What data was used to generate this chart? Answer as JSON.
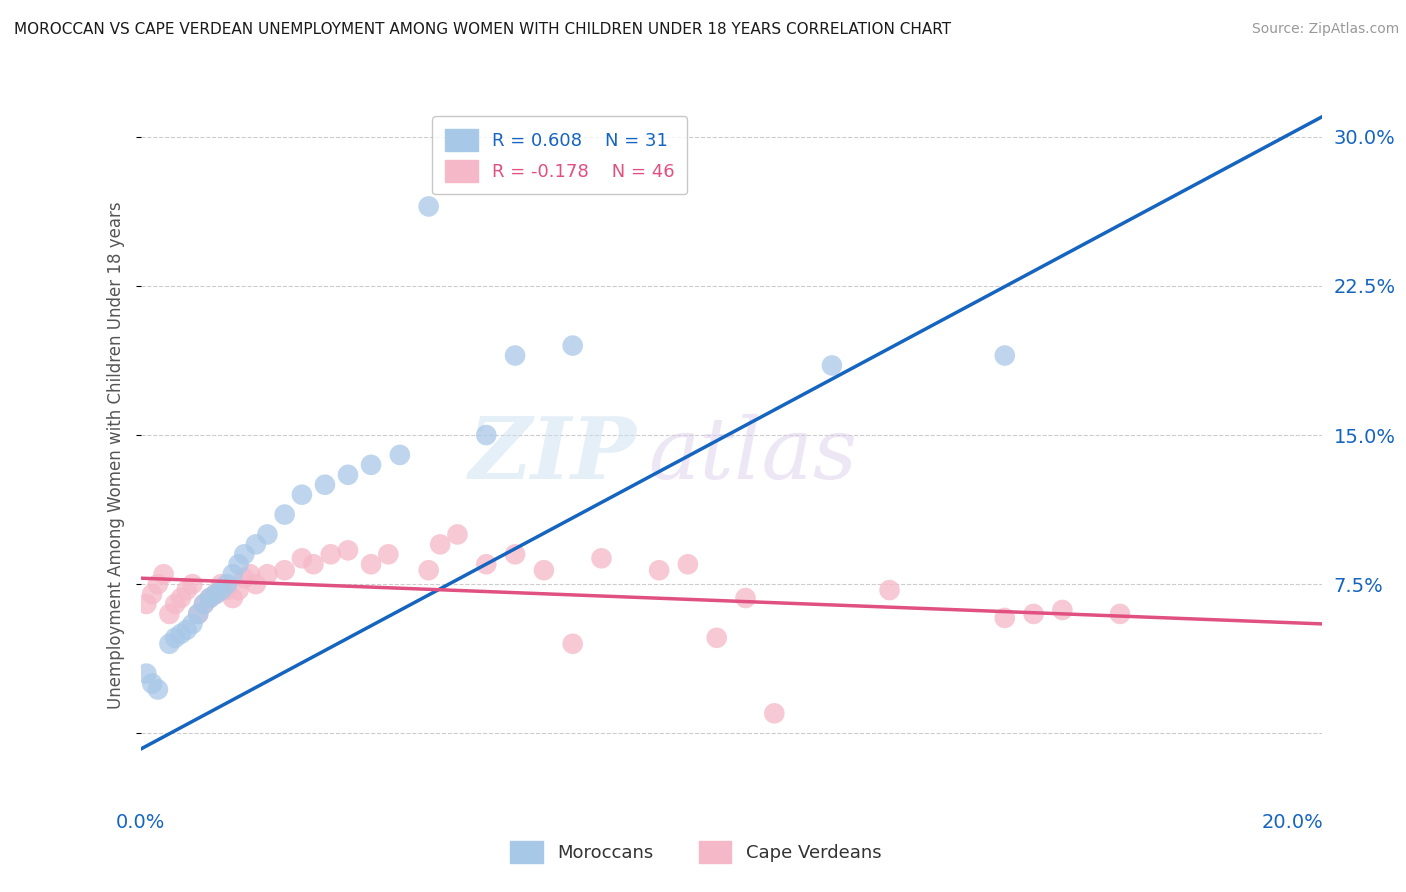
{
  "title": "MOROCCAN VS CAPE VERDEAN UNEMPLOYMENT AMONG WOMEN WITH CHILDREN UNDER 18 YEARS CORRELATION CHART",
  "source": "Source: ZipAtlas.com",
  "ylabel": "Unemployment Among Women with Children Under 18 years",
  "watermark_zip": "ZIP",
  "watermark_atlas": "atlas",
  "moroccan_color": "#a8c8e8",
  "capeverdean_color": "#f5b8c8",
  "moroccan_line_color": "#1565c0",
  "capeverdean_line_color": "#e05080",
  "moroccan_R": 0.608,
  "moroccan_N": 31,
  "capeverdean_R": -0.178,
  "capeverdean_N": 46,
  "xlim": [
    0.0,
    0.205
  ],
  "ylim": [
    -0.035,
    0.315
  ],
  "yticks": [
    0.0,
    0.075,
    0.15,
    0.225,
    0.3
  ],
  "ytick_labels": [
    "",
    "7.5%",
    "15.0%",
    "22.5%",
    "30.0%"
  ],
  "xticks": [
    0.0,
    0.05,
    0.1,
    0.15,
    0.2
  ],
  "xtick_labels": [
    "0.0%",
    "",
    "",
    "",
    "20.0%"
  ],
  "moroccan_x": [
    0.001,
    0.002,
    0.003,
    0.005,
    0.006,
    0.007,
    0.008,
    0.009,
    0.01,
    0.011,
    0.012,
    0.013,
    0.014,
    0.015,
    0.016,
    0.017,
    0.018,
    0.02,
    0.022,
    0.025,
    0.028,
    0.032,
    0.036,
    0.04,
    0.045,
    0.05,
    0.06,
    0.065,
    0.075,
    0.12,
    0.15
  ],
  "moroccan_y": [
    0.03,
    0.025,
    0.022,
    0.045,
    0.048,
    0.05,
    0.052,
    0.055,
    0.06,
    0.065,
    0.068,
    0.07,
    0.072,
    0.075,
    0.08,
    0.085,
    0.09,
    0.095,
    0.1,
    0.11,
    0.12,
    0.125,
    0.13,
    0.135,
    0.14,
    0.265,
    0.15,
    0.19,
    0.195,
    0.185,
    0.19
  ],
  "capeverdean_x": [
    0.001,
    0.002,
    0.003,
    0.004,
    0.005,
    0.006,
    0.007,
    0.008,
    0.009,
    0.01,
    0.011,
    0.012,
    0.013,
    0.014,
    0.015,
    0.016,
    0.017,
    0.018,
    0.019,
    0.02,
    0.022,
    0.025,
    0.028,
    0.03,
    0.033,
    0.036,
    0.04,
    0.043,
    0.05,
    0.052,
    0.055,
    0.06,
    0.065,
    0.07,
    0.075,
    0.08,
    0.09,
    0.095,
    0.1,
    0.105,
    0.11,
    0.13,
    0.15,
    0.155,
    0.16,
    0.17
  ],
  "capeverdean_y": [
    0.065,
    0.07,
    0.075,
    0.08,
    0.06,
    0.065,
    0.068,
    0.072,
    0.075,
    0.06,
    0.065,
    0.068,
    0.07,
    0.075,
    0.072,
    0.068,
    0.072,
    0.078,
    0.08,
    0.075,
    0.08,
    0.082,
    0.088,
    0.085,
    0.09,
    0.092,
    0.085,
    0.09,
    0.082,
    0.095,
    0.1,
    0.085,
    0.09,
    0.082,
    0.045,
    0.088,
    0.082,
    0.085,
    0.048,
    0.068,
    0.01,
    0.072,
    0.058,
    0.06,
    0.062,
    0.06
  ],
  "background_color": "#ffffff",
  "grid_color": "#cccccc",
  "moroccan_line_x": [
    0.0,
    0.205
  ],
  "moroccan_line_y": [
    -0.008,
    0.31
  ],
  "capeverdean_line_x": [
    0.0,
    0.205
  ],
  "capeverdean_line_y": [
    0.078,
    0.055
  ]
}
